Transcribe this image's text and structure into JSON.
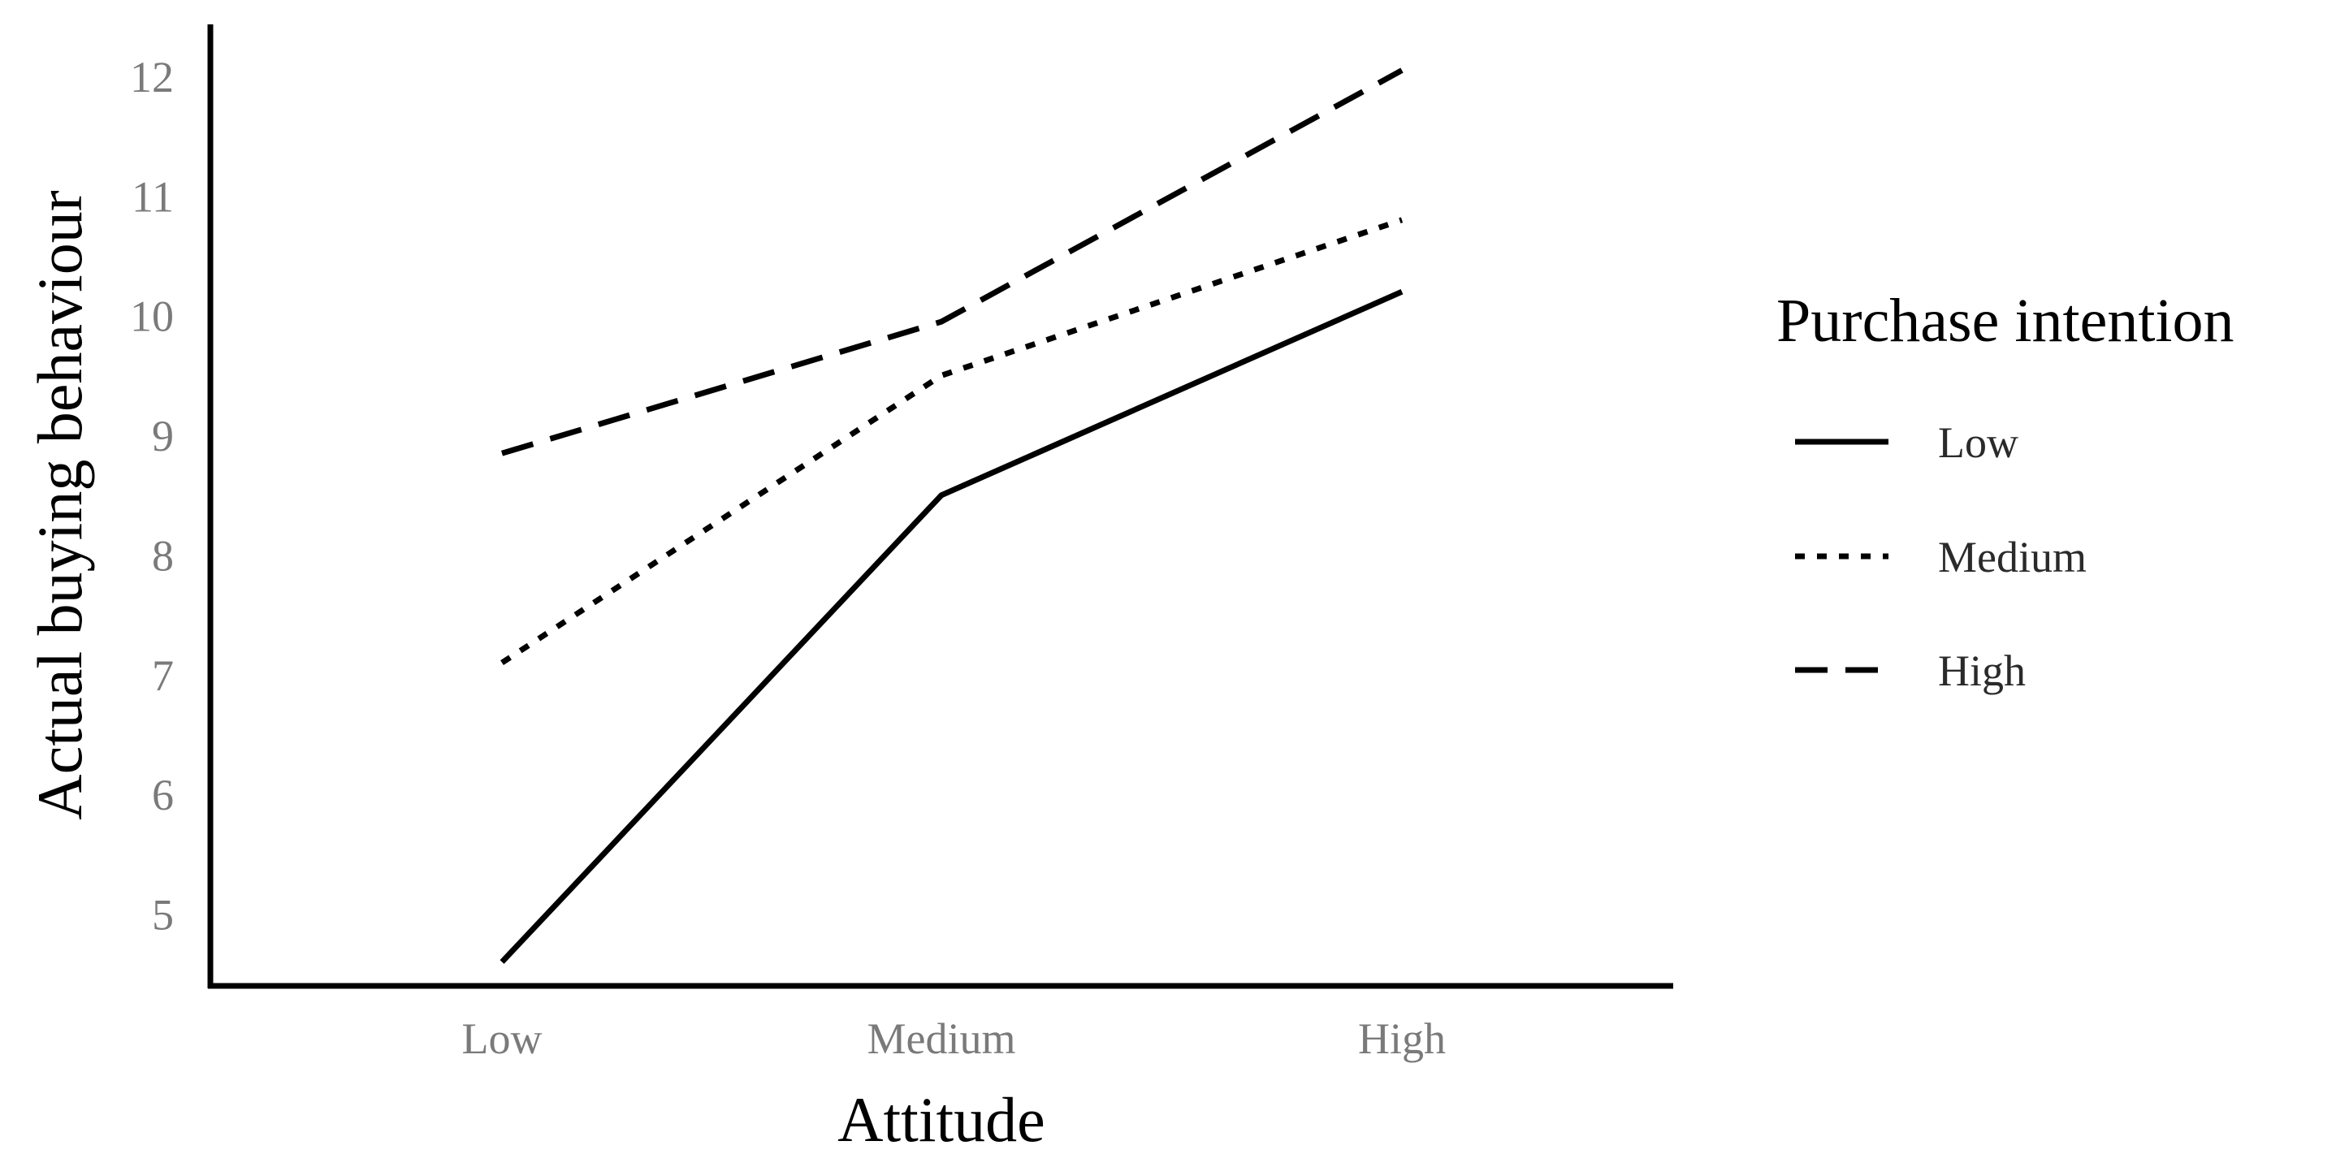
{
  "chart_data": {
    "type": "line",
    "title": "",
    "xlabel": "Attitude",
    "ylabel": "Actual buying behaviour",
    "categories": [
      "Low",
      "Medium",
      "High"
    ],
    "y_ticks": [
      5,
      6,
      7,
      8,
      9,
      10,
      11,
      12
    ],
    "ylim": [
      4.4,
      12.4
    ],
    "grid": false,
    "legend": {
      "title": "Purchase intention",
      "placement": "right"
    },
    "series": [
      {
        "name": "Low",
        "values": [
          4.6,
          8.5,
          10.2
        ],
        "line_style": "solid",
        "color": "#000000"
      },
      {
        "name": "Medium",
        "values": [
          7.1,
          9.5,
          10.8
        ],
        "line_style": "dotted",
        "color": "#000000"
      },
      {
        "name": "High",
        "values": [
          8.85,
          9.95,
          12.05
        ],
        "line_style": "dashed",
        "color": "#000000"
      }
    ]
  }
}
